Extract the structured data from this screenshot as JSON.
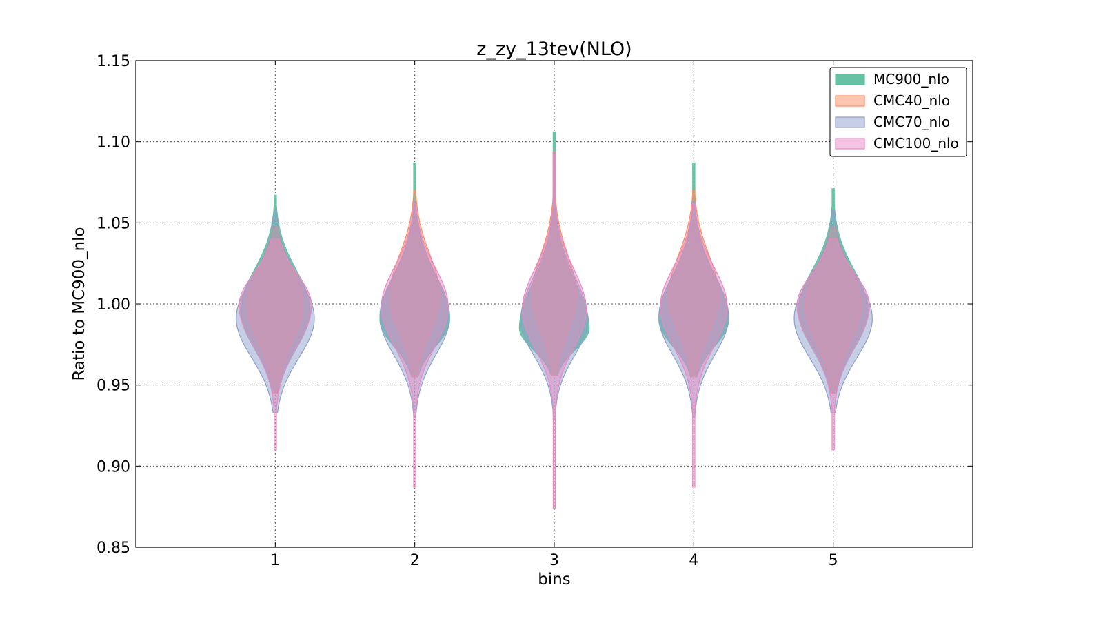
{
  "chart_data": {
    "type": "violin",
    "title": "z_zy_13tev(NLO)",
    "xlabel": "bins",
    "ylabel": "Ratio to MC900_nlo",
    "ylim": [
      0.85,
      1.15
    ],
    "xlim": [
      0,
      6
    ],
    "yticks": [
      "0.85",
      "0.90",
      "0.95",
      "1.00",
      "1.05",
      "1.10",
      "1.15"
    ],
    "categories": [
      "1",
      "2",
      "3",
      "4",
      "5"
    ],
    "grid": true,
    "legend_position": "top-right",
    "series": [
      {
        "name": "MC900_nlo",
        "color": "#66c2a5",
        "violins": [
          {
            "min": 0.945,
            "max": 1.067,
            "center": 0.998,
            "peak": 0.996,
            "hw": 0.25
          },
          {
            "min": 0.955,
            "max": 1.087,
            "center": 0.998,
            "peak": 0.99,
            "hw": 0.25
          },
          {
            "min": 0.956,
            "max": 1.106,
            "center": 0.995,
            "peak": 0.985,
            "hw": 0.25
          },
          {
            "min": 0.955,
            "max": 1.087,
            "center": 0.998,
            "peak": 0.99,
            "hw": 0.25
          },
          {
            "min": 0.945,
            "max": 1.071,
            "center": 0.998,
            "peak": 0.996,
            "hw": 0.25
          }
        ]
      },
      {
        "name": "CMC40_nlo",
        "color": "#fc8d62",
        "violins": [
          {
            "min": 0.945,
            "max": 1.047,
            "center": 1.003,
            "peak": 1.0,
            "hw": 0.2
          },
          {
            "min": 0.955,
            "max": 1.07,
            "center": 1.008,
            "peak": 1.005,
            "hw": 0.18
          },
          {
            "min": 0.956,
            "max": 1.094,
            "center": 1.008,
            "peak": 1.005,
            "hw": 0.16
          },
          {
            "min": 0.955,
            "max": 1.07,
            "center": 1.008,
            "peak": 1.005,
            "hw": 0.18
          },
          {
            "min": 0.945,
            "max": 1.047,
            "center": 1.003,
            "peak": 1.0,
            "hw": 0.2
          }
        ]
      },
      {
        "name": "CMC70_nlo",
        "color": "#8da0cb",
        "violins": [
          {
            "min": 0.933,
            "max": 1.058,
            "center": 0.993,
            "peak": 0.991,
            "hw": 0.28
          },
          {
            "min": 0.93,
            "max": 1.063,
            "center": 0.996,
            "peak": 0.992,
            "hw": 0.25
          },
          {
            "min": 0.929,
            "max": 1.093,
            "center": 0.997,
            "peak": 0.99,
            "hw": 0.24
          },
          {
            "min": 0.93,
            "max": 1.063,
            "center": 0.996,
            "peak": 0.992,
            "hw": 0.25
          },
          {
            "min": 0.933,
            "max": 1.058,
            "center": 0.993,
            "peak": 0.991,
            "hw": 0.28
          }
        ]
      },
      {
        "name": "CMC100_nlo",
        "color": "#e78ac3",
        "violins": [
          {
            "min": 0.91,
            "max": 1.04,
            "center": 1.0,
            "peak": 0.999,
            "hw": 0.26
          },
          {
            "min": 0.887,
            "max": 1.062,
            "center": 1.0,
            "peak": 0.998,
            "hw": 0.24
          },
          {
            "min": 0.874,
            "max": 1.092,
            "center": 1.0,
            "peak": 0.996,
            "hw": 0.23
          },
          {
            "min": 0.887,
            "max": 1.062,
            "center": 1.0,
            "peak": 0.998,
            "hw": 0.24
          },
          {
            "min": 0.91,
            "max": 1.04,
            "center": 1.0,
            "peak": 0.999,
            "hw": 0.26
          }
        ]
      }
    ]
  }
}
